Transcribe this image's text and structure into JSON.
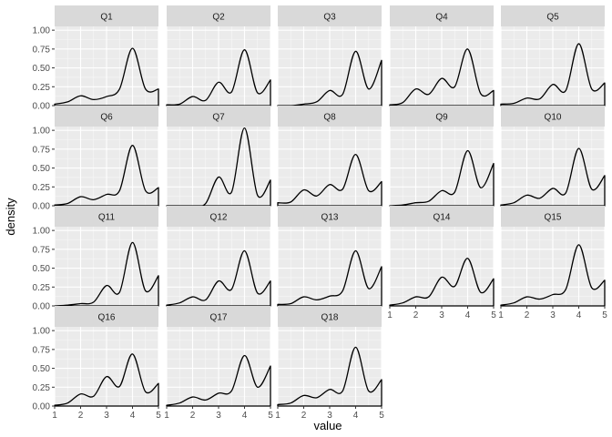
{
  "chart_data": {
    "type": "area",
    "title": "",
    "xlabel": "value",
    "ylabel": "density",
    "xlim": [
      1,
      5
    ],
    "ylim": [
      0,
      1.05
    ],
    "x_ticks": [
      "1",
      "2",
      "3",
      "4",
      "5"
    ],
    "y_ticks": [
      "0.00",
      "0.25",
      "0.50",
      "0.75",
      "1.00"
    ],
    "x_tick_values": [
      1,
      2,
      3,
      4,
      5
    ],
    "y_tick_values": [
      0,
      0.25,
      0.5,
      0.75,
      1.0
    ],
    "grid": true,
    "x_sample": [
      1,
      1.5,
      2,
      2.5,
      3,
      3.5,
      4,
      4.5,
      5
    ],
    "panels": [
      {
        "name": "Q1",
        "y": [
          0.02,
          0.05,
          0.13,
          0.08,
          0.12,
          0.22,
          0.76,
          0.22,
          0.22
        ]
      },
      {
        "name": "Q2",
        "y": [
          0.01,
          0.02,
          0.12,
          0.07,
          0.31,
          0.18,
          0.74,
          0.17,
          0.34
        ]
      },
      {
        "name": "Q3",
        "y": [
          0.0,
          0.0,
          0.02,
          0.05,
          0.2,
          0.15,
          0.72,
          0.22,
          0.6
        ]
      },
      {
        "name": "Q4",
        "y": [
          0.01,
          0.04,
          0.22,
          0.15,
          0.36,
          0.25,
          0.75,
          0.16,
          0.2
        ]
      },
      {
        "name": "Q5",
        "y": [
          0.02,
          0.03,
          0.1,
          0.09,
          0.28,
          0.2,
          0.82,
          0.22,
          0.3
        ]
      },
      {
        "name": "Q6",
        "y": [
          0.01,
          0.03,
          0.12,
          0.08,
          0.15,
          0.2,
          0.8,
          0.2,
          0.24
        ]
      },
      {
        "name": "Q7",
        "y": [
          0.0,
          0.0,
          0.0,
          0.03,
          0.38,
          0.18,
          1.03,
          0.14,
          0.34
        ]
      },
      {
        "name": "Q8",
        "y": [
          0.04,
          0.05,
          0.21,
          0.13,
          0.28,
          0.22,
          0.68,
          0.2,
          0.32
        ]
      },
      {
        "name": "Q9",
        "y": [
          0.0,
          0.01,
          0.04,
          0.06,
          0.2,
          0.18,
          0.73,
          0.24,
          0.56
        ]
      },
      {
        "name": "Q10",
        "y": [
          0.01,
          0.04,
          0.14,
          0.1,
          0.23,
          0.17,
          0.76,
          0.22,
          0.4
        ]
      },
      {
        "name": "Q11",
        "y": [
          0.0,
          0.01,
          0.03,
          0.05,
          0.27,
          0.18,
          0.84,
          0.2,
          0.4
        ]
      },
      {
        "name": "Q12",
        "y": [
          0.01,
          0.04,
          0.12,
          0.08,
          0.33,
          0.22,
          0.73,
          0.17,
          0.33
        ]
      },
      {
        "name": "Q13",
        "y": [
          0.02,
          0.03,
          0.12,
          0.08,
          0.13,
          0.2,
          0.73,
          0.23,
          0.52
        ]
      },
      {
        "name": "Q14",
        "y": [
          0.01,
          0.04,
          0.12,
          0.12,
          0.38,
          0.26,
          0.63,
          0.18,
          0.36
        ]
      },
      {
        "name": "Q15",
        "y": [
          0.01,
          0.04,
          0.12,
          0.09,
          0.15,
          0.22,
          0.81,
          0.24,
          0.34
        ]
      },
      {
        "name": "Q16",
        "y": [
          0.01,
          0.04,
          0.16,
          0.13,
          0.39,
          0.26,
          0.69,
          0.19,
          0.3
        ]
      },
      {
        "name": "Q17",
        "y": [
          0.01,
          0.04,
          0.12,
          0.08,
          0.17,
          0.2,
          0.67,
          0.25,
          0.53
        ]
      },
      {
        "name": "Q18",
        "y": [
          0.02,
          0.04,
          0.14,
          0.11,
          0.22,
          0.2,
          0.78,
          0.2,
          0.35
        ]
      }
    ]
  }
}
